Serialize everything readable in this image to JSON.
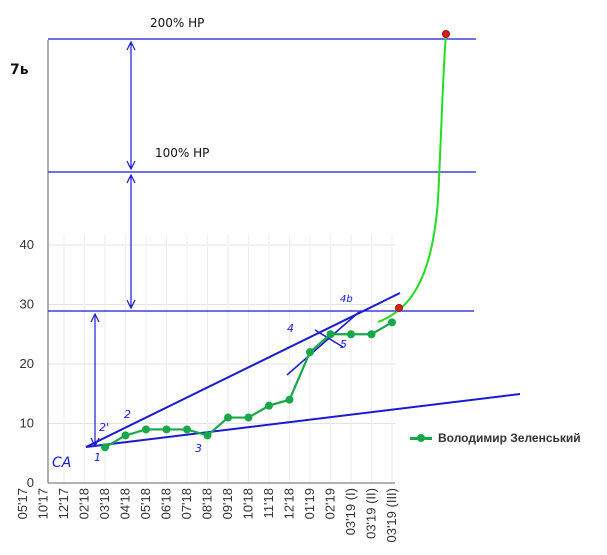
{
  "chart_data": {
    "type": "line",
    "title": "",
    "xlabel": "",
    "ylabel": "",
    "categories": [
      "05'17",
      "10'17",
      "12'17",
      "02'18",
      "03'18",
      "04'18",
      "05'18",
      "06'18",
      "07'18",
      "08'18",
      "09'18",
      "10'18",
      "11'18",
      "12'18",
      "01'19",
      "02'19",
      "03'19 (I)",
      "03'19 (II)",
      "03'19 (III)"
    ],
    "ylim": [
      0,
      40
    ],
    "yticks": [
      0,
      10,
      20,
      30,
      40
    ],
    "upper_axis_label": "7ь",
    "grid": true,
    "legend_position": "right",
    "series": [
      {
        "name": "Володимир Зеленський",
        "color": "#18a84a",
        "points": [
          [
            "03'18",
            6
          ],
          [
            "04'18",
            8
          ],
          [
            "05'18",
            9
          ],
          [
            "06'18",
            9
          ],
          [
            "07'18",
            9
          ],
          [
            "08'18",
            8
          ],
          [
            "09'18",
            11
          ],
          [
            "10'18",
            11
          ],
          [
            "11'18",
            13
          ],
          [
            "12'18",
            14
          ],
          [
            "01'19",
            22
          ],
          [
            "02'19",
            25
          ],
          [
            "03'19 (I)",
            25
          ],
          [
            "03'19 (II)",
            25
          ],
          [
            "03'19 (III)",
            27
          ]
        ]
      }
    ],
    "projection": {
      "color": "#22dd22",
      "start": 29.5,
      "end_marker": "red",
      "note": "curve continues upward to the 200% HP level"
    },
    "levels": [
      {
        "label": "200% HP"
      },
      {
        "label": "100% HP"
      },
      {
        "label": "",
        "value": 29
      }
    ],
    "annotations": {
      "ca": "CA",
      "points": [
        "1",
        "2'",
        "2",
        "3",
        "4",
        "5",
        "4b"
      ]
    }
  }
}
